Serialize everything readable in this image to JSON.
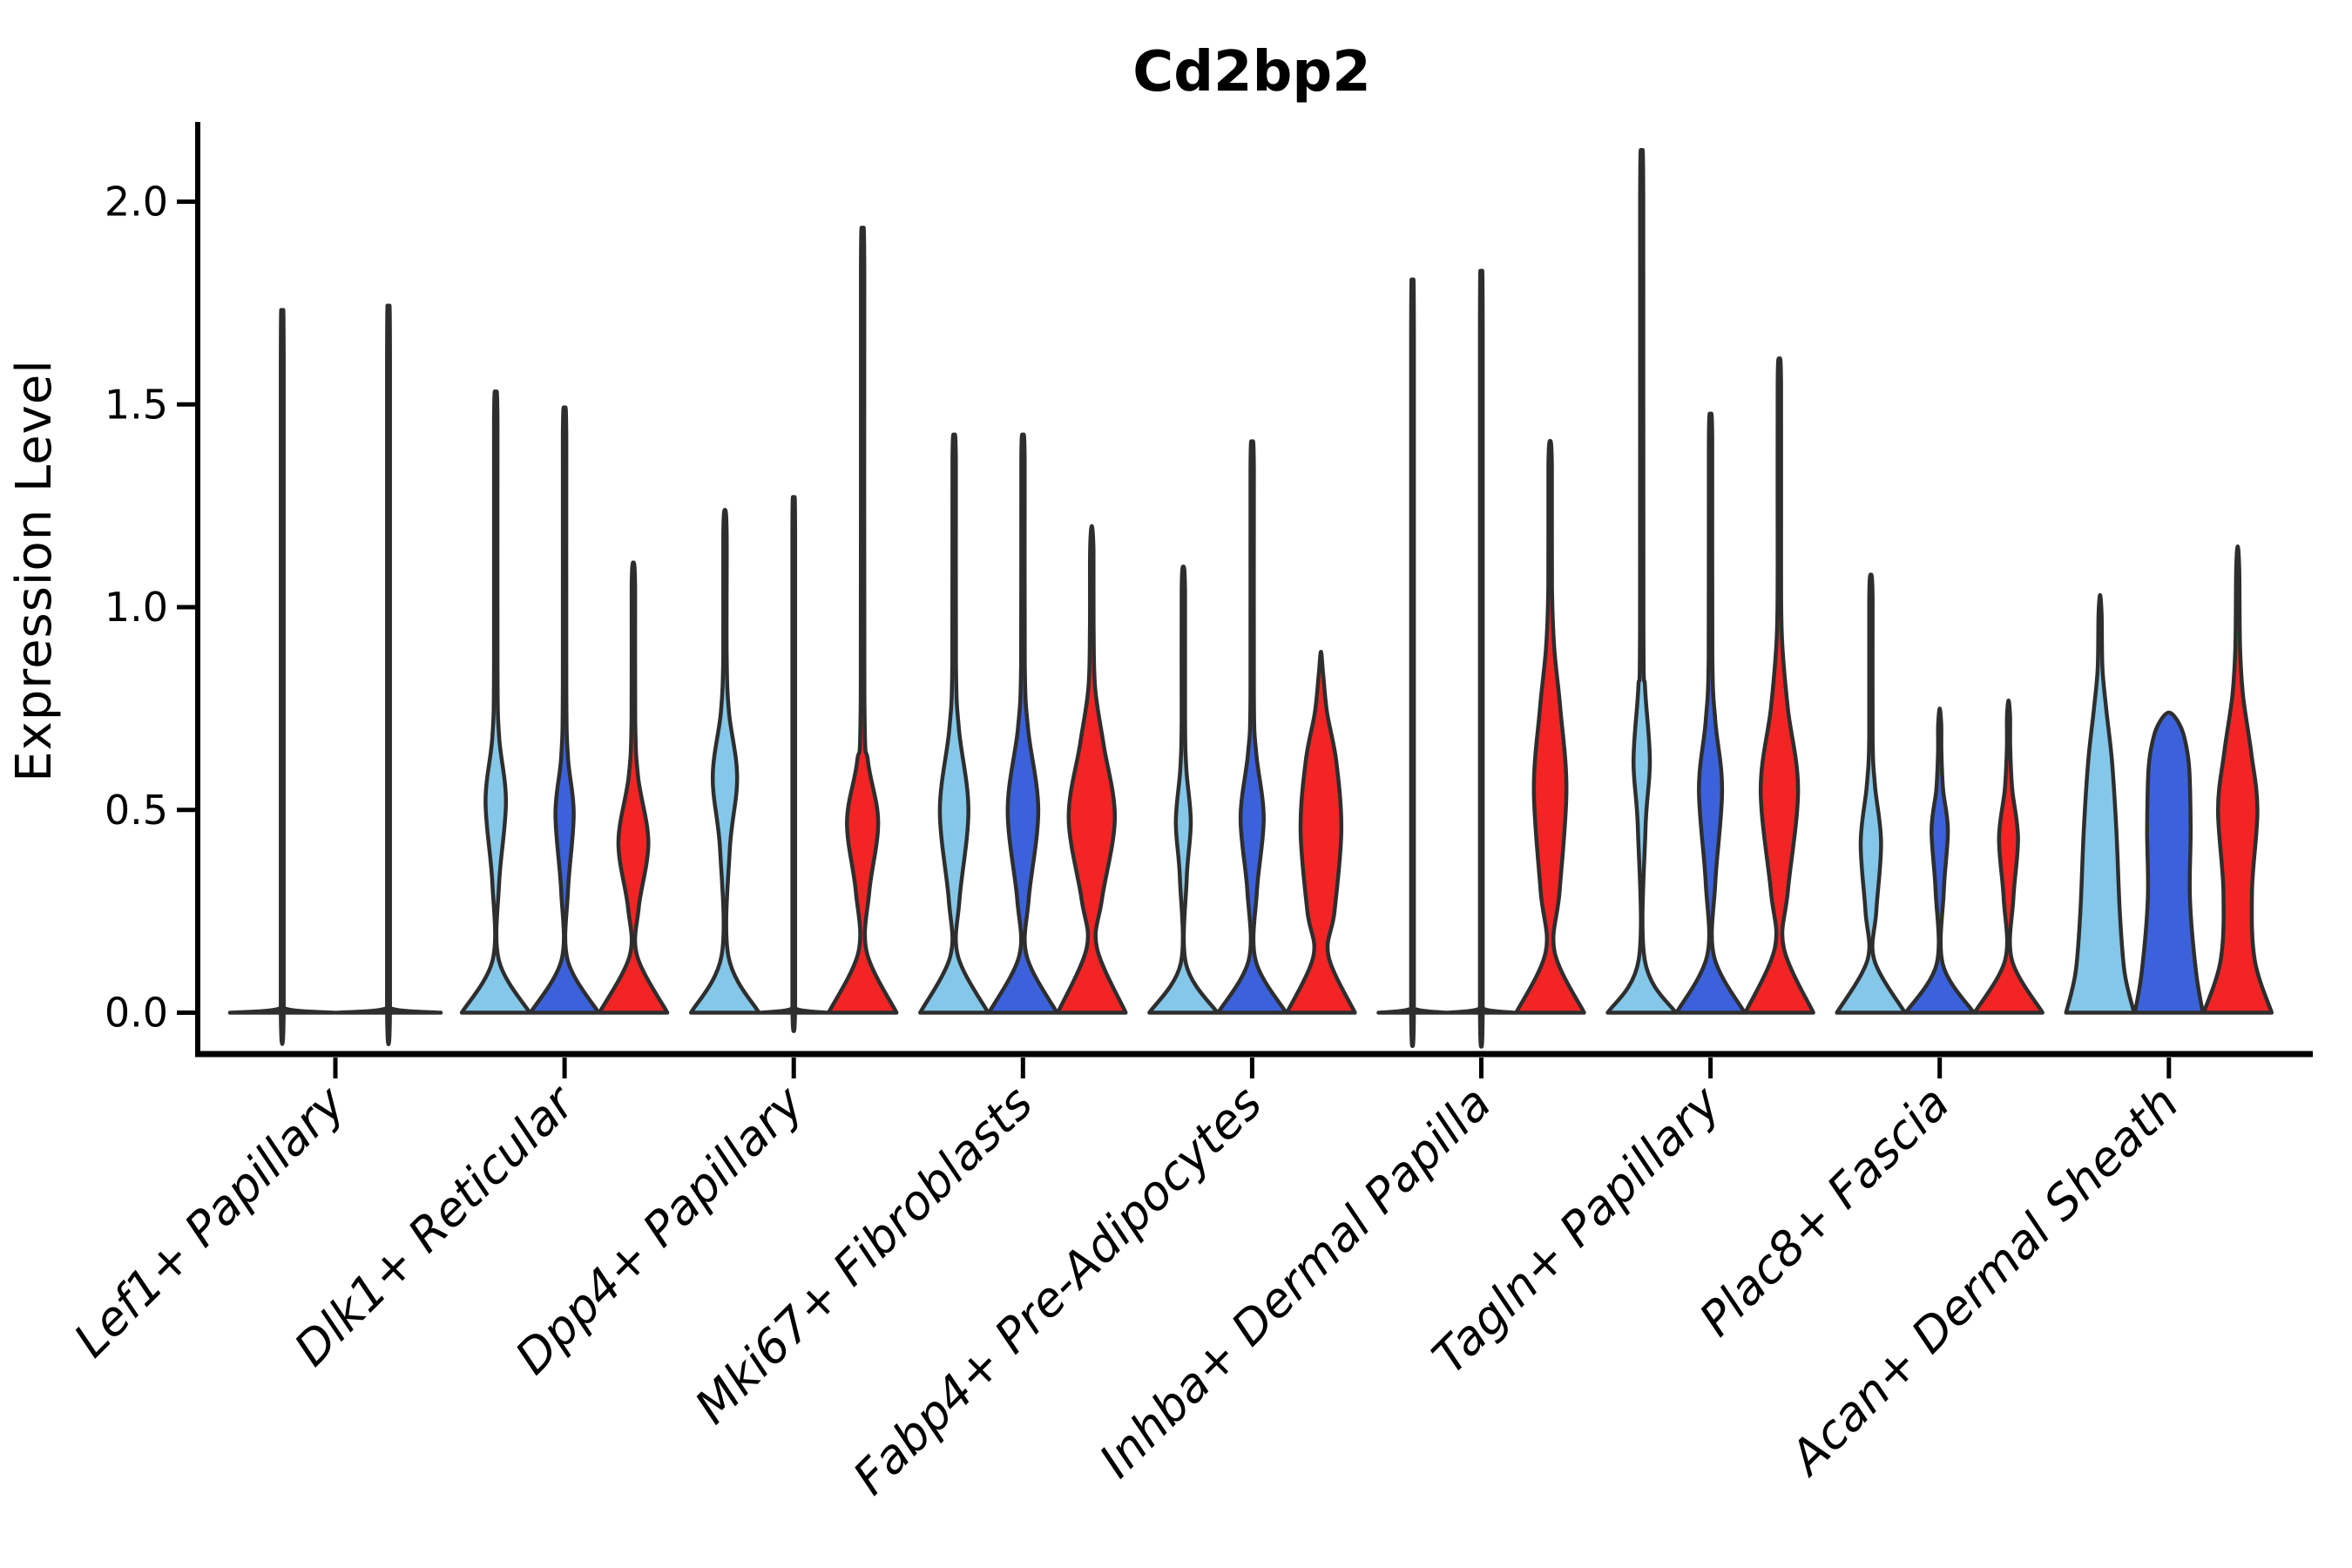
{
  "chart_data": {
    "type": "violin",
    "title": "Cd2bp2",
    "ylabel": "Expression Level",
    "ytick_labels": [
      "0.0",
      "0.5",
      "1.0",
      "1.5",
      "2.0"
    ],
    "ytick_values": [
      0.0,
      0.5,
      1.0,
      1.5,
      2.0
    ],
    "ylim": [
      0.0,
      2.2
    ],
    "grid": "off",
    "legend": "none",
    "categories": [
      "Lef1+ Papillary",
      "Dlk1+ Reticular",
      "Dpp4+ Papillary",
      "Mki67+ Fibroblasts",
      "Fabp4+ Pre-Adipocytes",
      "Inhba+ Dermal Papilla",
      "Tagln+ Papillary",
      "Plac8+ Fascia",
      "Acan+ Dermal Sheath"
    ],
    "colors": {
      "light_blue": "#84C7E8",
      "dark_blue": "#3B62DB",
      "red": "#F32424",
      "outline": "#2E2E2E",
      "axis": "#000000"
    },
    "groups": [
      {
        "category": "Lef1+ Papillary",
        "violins": [
          {
            "split": "light_blue",
            "max_expression": 1.65,
            "profile": [
              [
                0,
                1
              ],
              [
                0.01,
                0.06
              ],
              [
                0.05,
                0.028
              ],
              [
                1.6,
                0.028
              ],
              [
                1.65,
                0
              ]
            ]
          },
          {
            "split": "dark_blue",
            "max_expression": 1.66,
            "profile": [
              [
                0,
                1
              ],
              [
                0.01,
                0.06
              ],
              [
                0.05,
                0.028
              ],
              [
                1.61,
                0.028
              ],
              [
                1.66,
                0
              ]
            ]
          }
        ]
      },
      {
        "category": "Dlk1+ Reticular",
        "violins": [
          {
            "split": "light_blue",
            "max_expression": 1.52,
            "profile": [
              [
                0,
                1
              ],
              [
                0.13,
                0.09
              ],
              [
                0.32,
                0.1
              ],
              [
                0.52,
                0.3
              ],
              [
                0.68,
                0.1
              ],
              [
                0.85,
                0.05
              ],
              [
                1.46,
                0.05
              ],
              [
                1.52,
                0
              ]
            ]
          },
          {
            "split": "dark_blue",
            "max_expression": 1.48,
            "profile": [
              [
                0,
                1
              ],
              [
                0.13,
                0.09
              ],
              [
                0.3,
                0.1
              ],
              [
                0.49,
                0.27
              ],
              [
                0.63,
                0.1
              ],
              [
                0.8,
                0.05
              ],
              [
                1.42,
                0.05
              ],
              [
                1.48,
                0
              ]
            ]
          },
          {
            "split": "red",
            "max_expression": 1.11,
            "profile": [
              [
                0,
                1
              ],
              [
                0.14,
                0.11
              ],
              [
                0.26,
                0.16
              ],
              [
                0.42,
                0.44
              ],
              [
                0.58,
                0.14
              ],
              [
                0.72,
                0.055
              ],
              [
                1.05,
                0.05
              ],
              [
                1.11,
                0
              ]
            ]
          }
        ]
      },
      {
        "category": "Dpp4+ Papillary",
        "violins": [
          {
            "split": "light_blue",
            "max_expression": 1.24,
            "profile": [
              [
                0,
                1
              ],
              [
                0.14,
                0.1
              ],
              [
                0.4,
                0.14
              ],
              [
                0.58,
                0.36
              ],
              [
                0.74,
                0.12
              ],
              [
                0.88,
                0.05
              ],
              [
                1.18,
                0.05
              ],
              [
                1.24,
                0
              ]
            ]
          },
          {
            "split": "dark_blue",
            "max_expression": 1.22,
            "profile": [
              [
                0,
                1
              ],
              [
                0.01,
                0.06
              ],
              [
                0.05,
                0.04
              ],
              [
                1.17,
                0.04
              ],
              [
                1.22,
                0
              ]
            ]
          },
          {
            "split": "red",
            "max_expression": 1.9,
            "profile": [
              [
                0,
                1
              ],
              [
                0.15,
                0.12
              ],
              [
                0.3,
                0.2
              ],
              [
                0.47,
                0.46
              ],
              [
                0.62,
                0.16
              ],
              [
                0.78,
                0.055
              ],
              [
                1.83,
                0.05
              ],
              [
                1.9,
                0
              ]
            ]
          }
        ]
      },
      {
        "category": "Mki67+ Fibroblasts",
        "violins": [
          {
            "split": "light_blue",
            "max_expression": 1.42,
            "profile": [
              [
                0,
                1
              ],
              [
                0.14,
                0.11
              ],
              [
                0.28,
                0.16
              ],
              [
                0.5,
                0.42
              ],
              [
                0.7,
                0.14
              ],
              [
                0.86,
                0.055
              ],
              [
                1.36,
                0.05
              ],
              [
                1.42,
                0
              ]
            ]
          },
          {
            "split": "dark_blue",
            "max_expression": 1.42,
            "profile": [
              [
                0,
                1
              ],
              [
                0.14,
                0.11
              ],
              [
                0.28,
                0.17
              ],
              [
                0.5,
                0.45
              ],
              [
                0.7,
                0.15
              ],
              [
                0.86,
                0.055
              ],
              [
                1.36,
                0.05
              ],
              [
                1.42,
                0
              ]
            ]
          },
          {
            "split": "red",
            "max_expression": 1.2,
            "profile": [
              [
                0,
                1
              ],
              [
                0.16,
                0.15
              ],
              [
                0.28,
                0.3
              ],
              [
                0.48,
                0.68
              ],
              [
                0.66,
                0.35
              ],
              [
                0.8,
                0.1
              ],
              [
                0.95,
                0.055
              ],
              [
                1.14,
                0.05
              ],
              [
                1.2,
                0
              ]
            ]
          }
        ]
      },
      {
        "category": "Fabp4+ Pre-Adipocytes",
        "violins": [
          {
            "split": "light_blue",
            "max_expression": 1.1,
            "profile": [
              [
                0,
                1
              ],
              [
                0.12,
                0.08
              ],
              [
                0.33,
                0.1
              ],
              [
                0.47,
                0.22
              ],
              [
                0.6,
                0.09
              ],
              [
                0.72,
                0.05
              ],
              [
                1.04,
                0.05
              ],
              [
                1.1,
                0
              ]
            ]
          },
          {
            "split": "dark_blue",
            "max_expression": 1.4,
            "profile": [
              [
                0,
                1
              ],
              [
                0.13,
                0.1
              ],
              [
                0.3,
                0.14
              ],
              [
                0.48,
                0.34
              ],
              [
                0.64,
                0.12
              ],
              [
                0.78,
                0.05
              ],
              [
                1.34,
                0.05
              ],
              [
                1.4,
                0
              ]
            ]
          },
          {
            "split": "red",
            "max_expression": 0.89,
            "profile": [
              [
                0,
                1
              ],
              [
                0.14,
                0.22
              ],
              [
                0.25,
                0.4
              ],
              [
                0.45,
                0.6
              ],
              [
                0.62,
                0.45
              ],
              [
                0.74,
                0.18
              ],
              [
                0.84,
                0.06
              ],
              [
                0.89,
                0
              ]
            ]
          }
        ]
      },
      {
        "category": "Inhba+ Dermal Papilla",
        "violins": [
          {
            "split": "light_blue",
            "max_expression": 1.72,
            "profile": [
              [
                0,
                1
              ],
              [
                0.01,
                0.06
              ],
              [
                0.05,
                0.04
              ],
              [
                1.67,
                0.04
              ],
              [
                1.72,
                0
              ]
            ]
          },
          {
            "split": "dark_blue",
            "max_expression": 1.74,
            "profile": [
              [
                0,
                1
              ],
              [
                0.01,
                0.06
              ],
              [
                0.05,
                0.04
              ],
              [
                1.69,
                0.04
              ],
              [
                1.74,
                0
              ]
            ]
          },
          {
            "split": "red",
            "max_expression": 1.41,
            "profile": [
              [
                0,
                1
              ],
              [
                0.15,
                0.13
              ],
              [
                0.3,
                0.28
              ],
              [
                0.55,
                0.48
              ],
              [
                0.75,
                0.3
              ],
              [
                0.9,
                0.12
              ],
              [
                1.05,
                0.055
              ],
              [
                1.35,
                0.05
              ],
              [
                1.41,
                0
              ]
            ]
          }
        ]
      },
      {
        "category": "Tagln+ Papillary",
        "violins": [
          {
            "split": "light_blue",
            "max_expression": 2.09,
            "profile": [
              [
                0,
                1
              ],
              [
                0.13,
                0.09
              ],
              [
                0.45,
                0.11
              ],
              [
                0.62,
                0.24
              ],
              [
                0.8,
                0.1
              ],
              [
                0.95,
                0.05
              ],
              [
                2.02,
                0.045
              ],
              [
                2.09,
                0
              ]
            ]
          },
          {
            "split": "dark_blue",
            "max_expression": 1.47,
            "profile": [
              [
                0,
                1
              ],
              [
                0.14,
                0.1
              ],
              [
                0.32,
                0.14
              ],
              [
                0.55,
                0.34
              ],
              [
                0.72,
                0.14
              ],
              [
                0.88,
                0.055
              ],
              [
                1.41,
                0.05
              ],
              [
                1.47,
                0
              ]
            ]
          },
          {
            "split": "red",
            "max_expression": 1.61,
            "profile": [
              [
                0,
                1
              ],
              [
                0.16,
                0.13
              ],
              [
                0.3,
                0.25
              ],
              [
                0.55,
                0.55
              ],
              [
                0.75,
                0.25
              ],
              [
                0.92,
                0.08
              ],
              [
                1.1,
                0.05
              ],
              [
                1.55,
                0.05
              ],
              [
                1.61,
                0
              ]
            ]
          }
        ]
      },
      {
        "category": "Plac8+ Fascia",
        "violins": [
          {
            "split": "light_blue",
            "max_expression": 1.08,
            "profile": [
              [
                0,
                1
              ],
              [
                0.13,
                0.1
              ],
              [
                0.25,
                0.16
              ],
              [
                0.42,
                0.3
              ],
              [
                0.56,
                0.12
              ],
              [
                0.68,
                0.05
              ],
              [
                1.02,
                0.05
              ],
              [
                1.08,
                0
              ]
            ]
          },
          {
            "split": "dark_blue",
            "max_expression": 0.75,
            "profile": [
              [
                0,
                1
              ],
              [
                0.12,
                0.09
              ],
              [
                0.3,
                0.12
              ],
              [
                0.45,
                0.24
              ],
              [
                0.55,
                0.1
              ],
              [
                0.64,
                0.05
              ],
              [
                0.71,
                0.045
              ],
              [
                0.75,
                0
              ]
            ]
          },
          {
            "split": "red",
            "max_expression": 0.77,
            "profile": [
              [
                0,
                1
              ],
              [
                0.13,
                0.1
              ],
              [
                0.28,
                0.14
              ],
              [
                0.43,
                0.28
              ],
              [
                0.55,
                0.11
              ],
              [
                0.65,
                0.05
              ],
              [
                0.73,
                0.045
              ],
              [
                0.77,
                0
              ]
            ]
          }
        ]
      },
      {
        "category": "Acan+ Dermal Sheath",
        "violins": [
          {
            "split": "light_blue",
            "max_expression": 1.03,
            "profile": [
              [
                0,
                1
              ],
              [
                0.1,
                0.72
              ],
              [
                0.25,
                0.58
              ],
              [
                0.45,
                0.48
              ],
              [
                0.62,
                0.35
              ],
              [
                0.75,
                0.18
              ],
              [
                0.85,
                0.07
              ],
              [
                0.98,
                0.045
              ],
              [
                1.03,
                0
              ]
            ]
          },
          {
            "split": "dark_blue",
            "max_expression": 0.74,
            "profile": [
              [
                0,
                1
              ],
              [
                0.1,
                0.8
              ],
              [
                0.28,
                0.62
              ],
              [
                0.45,
                0.64
              ],
              [
                0.6,
                0.6
              ],
              [
                0.68,
                0.45
              ],
              [
                0.72,
                0.25
              ],
              [
                0.74,
                0
              ]
            ]
          },
          {
            "split": "red",
            "max_expression": 1.15,
            "profile": [
              [
                0,
                1
              ],
              [
                0.13,
                0.5
              ],
              [
                0.3,
                0.42
              ],
              [
                0.5,
                0.58
              ],
              [
                0.64,
                0.4
              ],
              [
                0.78,
                0.16
              ],
              [
                0.9,
                0.07
              ],
              [
                1.09,
                0.045
              ],
              [
                1.15,
                0
              ]
            ]
          }
        ]
      }
    ]
  }
}
